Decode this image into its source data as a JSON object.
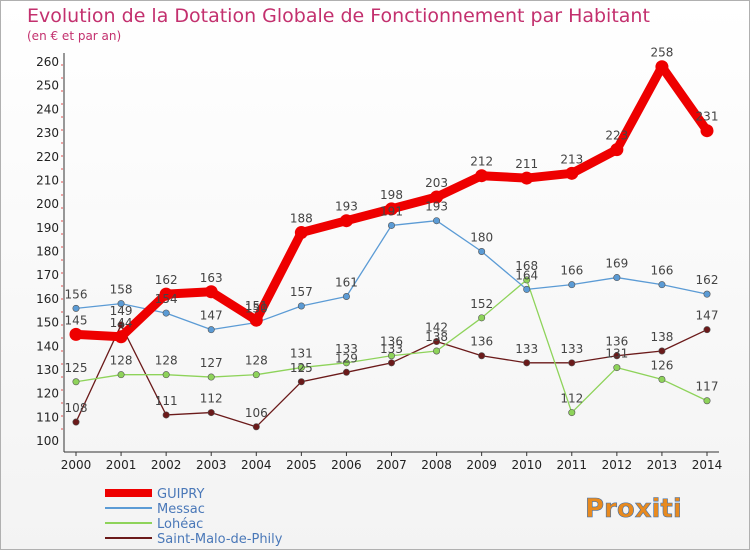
{
  "chart_data": {
    "type": "line",
    "title": "Evolution de la Dotation Globale de Fonctionnement par Habitant",
    "subtitle": "(en € et par an)",
    "xlabel": "",
    "ylabel": "",
    "ylim": [
      100,
      260
    ],
    "yticks": [
      100,
      110,
      120,
      130,
      140,
      150,
      160,
      170,
      180,
      190,
      200,
      210,
      220,
      230,
      240,
      250,
      260
    ],
    "categories": [
      "2000",
      "2001",
      "2002",
      "2003",
      "2004",
      "2005",
      "2006",
      "2007",
      "2008",
      "2009",
      "2010",
      "2011",
      "2012",
      "2013",
      "2014"
    ],
    "series": [
      {
        "name": "GUIPRY",
        "color": "#ee0000",
        "values": [
          145,
          144,
          162,
          163,
          151,
          188,
          193,
          198,
          203,
          212,
          211,
          213,
          223,
          258,
          231
        ]
      },
      {
        "name": "Messac",
        "color": "#5b9bd5",
        "values": [
          156,
          158,
          154,
          147,
          150,
          157,
          161,
          191,
          193,
          180,
          164,
          166,
          169,
          166,
          162
        ]
      },
      {
        "name": "Lohéac",
        "color": "#8ed35a",
        "values": [
          125,
          128,
          128,
          127,
          128,
          131,
          133,
          136,
          138,
          152,
          168,
          112,
          131,
          126,
          117
        ]
      },
      {
        "name": "Saint-Malo-de-Phily",
        "color": "#6b1a1a",
        "values": [
          108,
          149,
          111,
          112,
          106,
          125,
          129,
          133,
          142,
          136,
          133,
          133,
          136,
          138,
          147
        ]
      }
    ],
    "legend": "bottom-left",
    "grid": false
  },
  "branding": {
    "logo_text": "Proxiti"
  }
}
